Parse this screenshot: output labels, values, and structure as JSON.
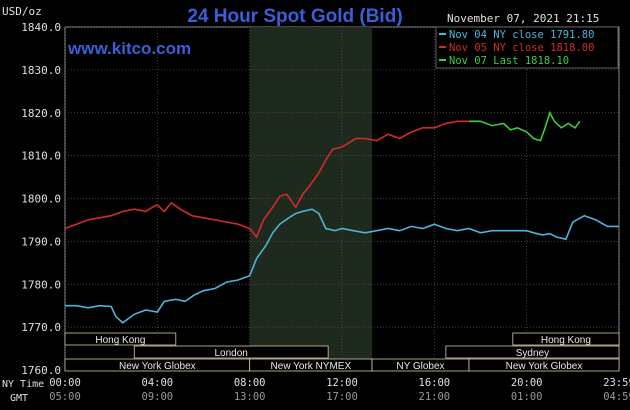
{
  "chart_data": {
    "type": "line",
    "title": "24 Hour Spot Gold (Bid)",
    "website": "www.kitco.com",
    "timestamp": "November 07, 2021 21:15",
    "ylabel": "USD/oz",
    "ylim": [
      1760,
      1840
    ],
    "y_ticks": [
      "1840.0",
      "1830.0",
      "1820.0",
      "1810.0",
      "1800.0",
      "1790.0",
      "1780.0",
      "1770.0",
      "1760.0"
    ],
    "y_tick_values": [
      1840,
      1830,
      1820,
      1810,
      1800,
      1790,
      1780,
      1770,
      1760
    ],
    "xlim": [
      0,
      24
    ],
    "x_tick_hours": [
      0,
      4,
      8,
      12,
      16,
      20,
      24
    ],
    "x_labels_ny": [
      "00:00",
      "04:00",
      "08:00",
      "12:00",
      "16:00",
      "20:00",
      "23:59"
    ],
    "x_labels_gmt": [
      "05:00",
      "09:00",
      "13:00",
      "17:00",
      "21:00",
      "01:00",
      "04:59"
    ],
    "ny_time_label": "NY Time",
    "gmt_label": "GMT",
    "grid": true,
    "highlight_band": [
      8,
      13.3
    ],
    "legend_position": "top-right",
    "sessions": [
      {
        "label": "Hong Kong",
        "start": 0,
        "end": 4.8,
        "row": 0
      },
      {
        "label": "Hong Kong",
        "start": 19.4,
        "end": 24,
        "row": 0
      },
      {
        "label": "London",
        "start": 3,
        "end": 11.4,
        "row": 1
      },
      {
        "label": "Sydney",
        "start": 16.5,
        "end": 24,
        "row": 1
      },
      {
        "label": "New York Globex",
        "start": 0,
        "end": 8,
        "row": 2
      },
      {
        "label": "New York NYMEX",
        "start": 8,
        "end": 13.3,
        "row": 2
      },
      {
        "label": "NY Globex",
        "start": 13.3,
        "end": 17.5,
        "row": 2
      },
      {
        "label": "New York Globex",
        "start": 17.5,
        "end": 24,
        "row": 2
      }
    ],
    "series": [
      {
        "name": "Nov 04 NY close 1791.80",
        "color": "#4fb3d9",
        "x": [
          0,
          0.5,
          1,
          1.5,
          2,
          2.2,
          2.5,
          3,
          3.5,
          4,
          4.3,
          4.8,
          5.2,
          5.6,
          6,
          6.5,
          7,
          7.5,
          8,
          8.3,
          8.7,
          9,
          9.3,
          9.7,
          10,
          10.3,
          10.7,
          11,
          11.3,
          11.7,
          12,
          12.5,
          13,
          13.5,
          14,
          14.5,
          15,
          15.5,
          16,
          16.5,
          17,
          17.5,
          18,
          18.5,
          19,
          19.5,
          20,
          20.3,
          20.7,
          21,
          21.3,
          21.7,
          22,
          22.5,
          23,
          23.5,
          24
        ],
        "y": [
          1775,
          1775,
          1774.5,
          1775,
          1774.8,
          1772.5,
          1771,
          1773,
          1774,
          1773.5,
          1776,
          1776.5,
          1776,
          1777.5,
          1778.5,
          1779,
          1780.5,
          1781,
          1782,
          1786,
          1789,
          1792,
          1794,
          1795.5,
          1796.5,
          1797,
          1797.5,
          1796.5,
          1793,
          1792.5,
          1793,
          1792.5,
          1792,
          1792.5,
          1793,
          1792.5,
          1793.5,
          1793,
          1794,
          1793,
          1792.5,
          1793,
          1792,
          1792.5,
          1792.5,
          1792.5,
          1792.5,
          1792,
          1791.5,
          1791.8,
          1791,
          1790.5,
          1794.5,
          1796,
          1795,
          1793.5,
          1793.5
        ]
      },
      {
        "name": "Nov 05 NY close 1818.00",
        "color": "#d42a2a",
        "x": [
          0,
          0.5,
          1,
          1.5,
          2,
          2.5,
          3,
          3.5,
          3.8,
          4,
          4.3,
          4.6,
          5,
          5.5,
          6,
          6.5,
          7,
          7.5,
          8,
          8.3,
          8.6,
          9,
          9.3,
          9.6,
          10,
          10.3,
          10.6,
          11,
          11.3,
          11.6,
          12,
          12.3,
          12.6,
          13,
          13.5,
          14,
          14.5,
          15,
          15.5,
          16,
          16.5,
          17,
          17.5
        ],
        "y": [
          1793,
          1794,
          1795,
          1795.5,
          1796,
          1797,
          1797.5,
          1797,
          1798,
          1798.5,
          1797,
          1799,
          1797.5,
          1796,
          1795.5,
          1795,
          1794.5,
          1794,
          1793,
          1791,
          1795,
          1798,
          1800.5,
          1801,
          1798,
          1801,
          1803,
          1806,
          1809,
          1811.5,
          1812,
          1813,
          1814,
          1814,
          1813.5,
          1815,
          1814,
          1815.5,
          1816.5,
          1816.5,
          1817.5,
          1818,
          1818
        ]
      },
      {
        "name": "Nov 07 Last 1818.10",
        "color": "#3ecc3e",
        "x": [
          17.5,
          18,
          18.5,
          19,
          19.3,
          19.6,
          20,
          20.3,
          20.6,
          20.8,
          21,
          21.2,
          21.5,
          21.8,
          22.1,
          22.3
        ],
        "y": [
          1818,
          1818,
          1817,
          1817.5,
          1816,
          1816.5,
          1815.5,
          1814,
          1813.5,
          1816.5,
          1820,
          1818,
          1816.5,
          1817.5,
          1816.5,
          1818
        ]
      }
    ]
  }
}
